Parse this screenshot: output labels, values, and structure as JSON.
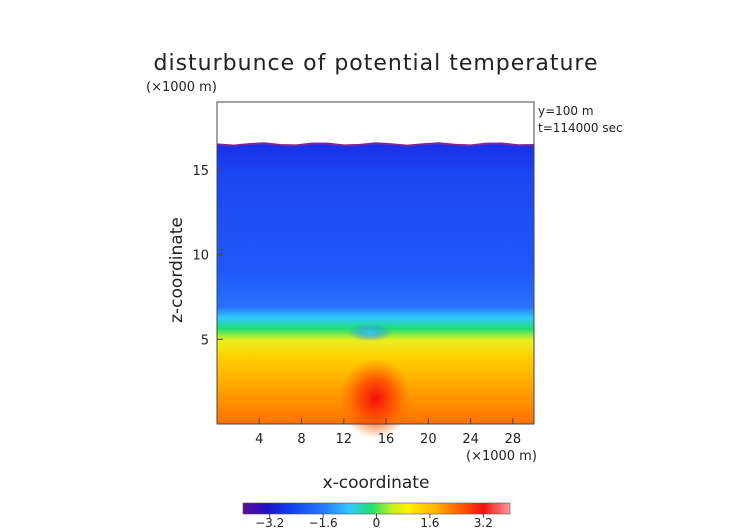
{
  "chart_data": {
    "type": "heatmap",
    "title": "disturbunce of potential temperature",
    "scale_label": "(×1000 m)",
    "xlabel": "x-coordinate",
    "ylabel": "z-coordinate",
    "x_unit_label": "(×1000 m)",
    "annotations": [
      "y=100 m",
      "t=114000 sec"
    ],
    "xlim": [
      0,
      30
    ],
    "ylim": [
      0,
      19
    ],
    "x_ticks": [
      4,
      8,
      12,
      16,
      20,
      24,
      28
    ],
    "y_ticks": [
      5,
      10,
      15
    ],
    "data_top_z": 16.5,
    "colorbar": {
      "min": -4.0,
      "max": 4.0,
      "ticks": [
        "−3.2",
        "−1.6",
        "0",
        "1.6",
        "3.2"
      ],
      "tick_values": [
        -3.2,
        -1.6,
        0,
        1.6,
        3.2
      ],
      "colors": [
        "#5a1090",
        "#2010c8",
        "#1040f0",
        "#2878ff",
        "#30c8ff",
        "#20e070",
        "#c8f020",
        "#fff200",
        "#ffb400",
        "#ff6a00",
        "#f01010",
        "#ff9a9a"
      ]
    },
    "description_values": {
      "upper_region_value": -2.4,
      "lower_region_value": 2.0,
      "transition_z": 6.0,
      "warm_core": {
        "x": 15,
        "z": 1.5,
        "value": 3.2
      }
    }
  }
}
